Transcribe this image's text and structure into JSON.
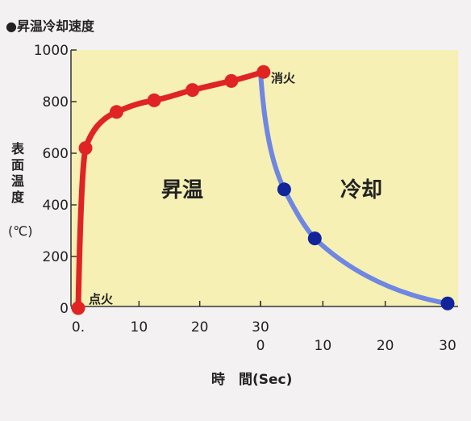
{
  "title": "●昇温冷却速度",
  "ylabel_chars": [
    "表",
    "面",
    "温",
    "度"
  ],
  "yunit": "(℃)",
  "xlabel": "時　間(Sec)",
  "colors": {
    "plot_bg": "#f6f0b4",
    "page_bg": "#f4f1f3",
    "heating": "#e02424",
    "cooling": "#4a62d8",
    "cooling_line": "#6f86e2",
    "cooling_point": "#12249a"
  },
  "chart_data": {
    "type": "line",
    "title": "昇温冷却速度",
    "ylabel": "表面温度 (℃)",
    "xlabel": "時間(Sec)",
    "ylim": [
      0,
      1000
    ],
    "yticks": [
      0,
      200,
      400,
      600,
      800,
      1000
    ],
    "grid": false,
    "panels": [
      {
        "name": "昇温",
        "xlim": [
          0,
          30
        ],
        "xticks": [
          0,
          10,
          20,
          30
        ],
        "xtick_labels": [
          "0.",
          "10",
          "20",
          "30"
        ],
        "series": [
          {
            "points": [
              [
                0,
                0
              ],
              [
                1.2,
                620
              ],
              [
                6.3,
                760
              ],
              [
                12.5,
                805
              ],
              [
                18.8,
                845
              ],
              [
                25.2,
                880
              ],
              [
                30.5,
                915
              ]
            ]
          }
        ]
      },
      {
        "name": "冷却",
        "xlim": [
          0,
          30
        ],
        "xticks": [
          0,
          10,
          20,
          30
        ],
        "xtick_labels": [
          "0",
          "10",
          "20",
          "30"
        ],
        "series": [
          {
            "points": [
              [
                0,
                915
              ],
              [
                3.8,
                460
              ],
              [
                8.7,
                270
              ],
              [
                30,
                18
              ]
            ]
          }
        ]
      }
    ],
    "annotations": {
      "ignition": "点火",
      "extinguish": "消火",
      "heating": "昇温",
      "cooling": "冷却"
    }
  }
}
